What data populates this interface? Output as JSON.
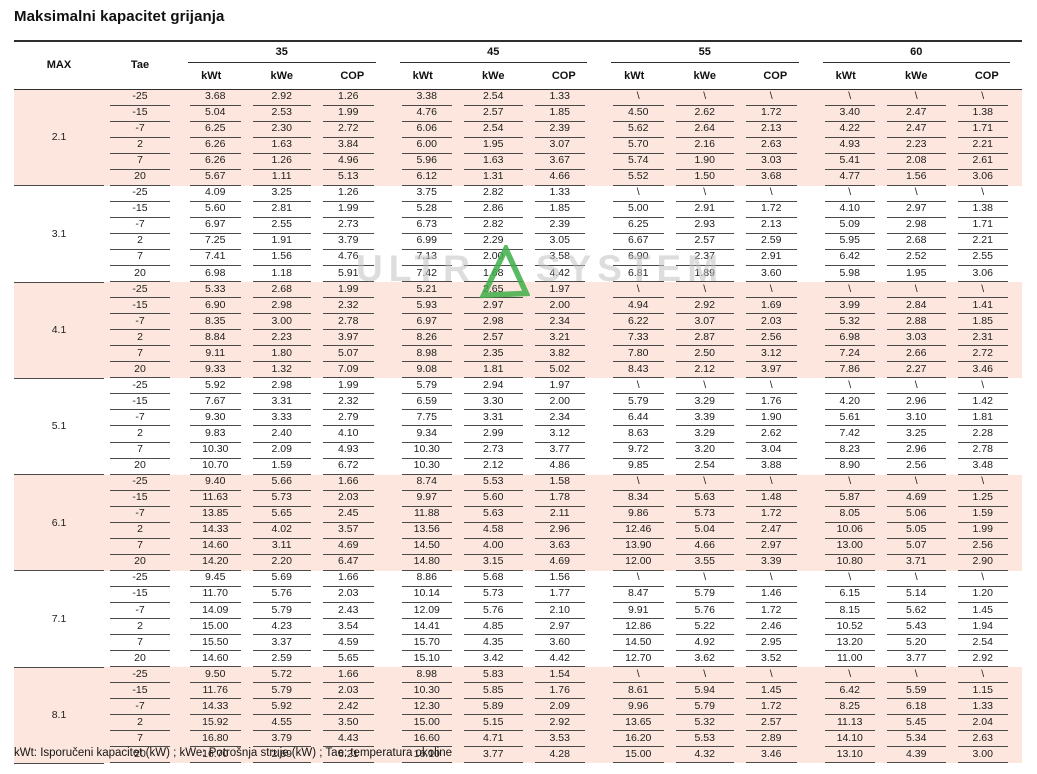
{
  "title": "Maksimalni kapacitet grijanja",
  "header": {
    "max_label": "MAX",
    "tae_label": "Tae",
    "groups": [
      "35",
      "45",
      "55",
      "60"
    ],
    "sub_labels": [
      "kWt",
      "kWe",
      "COP"
    ]
  },
  "footnote": "kWt: Isporučeni kapacitet (kW) ; kWe: Potrošnja struje (kW) ; Tae: temperatura okoline",
  "watermark": {
    "part1": "ULTR",
    "part2": "SYSTEM",
    "triangle_color": "#3fae49",
    "text_color": "#c3c3c3"
  },
  "colors": {
    "band_pink": "#fce6dd",
    "line_dark": "#2e2e2e",
    "line_cell": "#4a4a4a"
  },
  "chart_data": {
    "type": "table",
    "title": "Maksimalni kapacitet grijanja",
    "column_groups": [
      "35",
      "45",
      "55",
      "60"
    ],
    "columns_per_group": [
      "kWt",
      "kWe",
      "COP"
    ],
    "groups": [
      {
        "max": "2.1",
        "rows": [
          [
            "-25",
            "3.68",
            "2.92",
            "1.26",
            "3.38",
            "2.54",
            "1.33",
            "\\",
            "\\",
            "\\",
            "\\",
            "\\",
            "\\"
          ],
          [
            "-15",
            "5.04",
            "2.53",
            "1.99",
            "4.76",
            "2.57",
            "1.85",
            "4.50",
            "2.62",
            "1.72",
            "3.40",
            "2.47",
            "1.38"
          ],
          [
            "-7",
            "6.25",
            "2.30",
            "2.72",
            "6.06",
            "2.54",
            "2.39",
            "5.62",
            "2.64",
            "2.13",
            "4.22",
            "2.47",
            "1.71"
          ],
          [
            "2",
            "6.26",
            "1.63",
            "3.84",
            "6.00",
            "1.95",
            "3.07",
            "5.70",
            "2.16",
            "2.63",
            "4.93",
            "2.23",
            "2.21"
          ],
          [
            "7",
            "6.26",
            "1.26",
            "4.96",
            "5.96",
            "1.63",
            "3.67",
            "5.74",
            "1.90",
            "3.03",
            "5.41",
            "2.08",
            "2.61"
          ],
          [
            "20",
            "5.67",
            "1.11",
            "5.13",
            "6.12",
            "1.31",
            "4.66",
            "5.52",
            "1.50",
            "3.68",
            "4.77",
            "1.56",
            "3.06"
          ]
        ]
      },
      {
        "max": "3.1",
        "rows": [
          [
            "-25",
            "4.09",
            "3.25",
            "1.26",
            "3.75",
            "2.82",
            "1.33",
            "\\",
            "\\",
            "\\",
            "\\",
            "\\",
            "\\"
          ],
          [
            "-15",
            "5.60",
            "2.81",
            "1.99",
            "5.28",
            "2.86",
            "1.85",
            "5.00",
            "2.91",
            "1.72",
            "4.10",
            "2.97",
            "1.38"
          ],
          [
            "-7",
            "6.97",
            "2.55",
            "2.73",
            "6.73",
            "2.82",
            "2.39",
            "6.25",
            "2.93",
            "2.13",
            "5.09",
            "2.98",
            "1.71"
          ],
          [
            "2",
            "7.25",
            "1.91",
            "3.79",
            "6.99",
            "2.29",
            "3.05",
            "6.67",
            "2.57",
            "2.59",
            "5.95",
            "2.68",
            "2.21"
          ],
          [
            "7",
            "7.41",
            "1.56",
            "4.76",
            "7.13",
            "2.00",
            "3.58",
            "6.90",
            "2.37",
            "2.91",
            "6.42",
            "2.52",
            "2.55"
          ],
          [
            "20",
            "6.98",
            "1.18",
            "5.91",
            "7.42",
            "1.68",
            "4.42",
            "6.81",
            "1.89",
            "3.60",
            "5.98",
            "1.95",
            "3.06"
          ]
        ]
      },
      {
        "max": "4.1",
        "rows": [
          [
            "-25",
            "5.33",
            "2.68",
            "1.99",
            "5.21",
            "2.65",
            "1.97",
            "\\",
            "\\",
            "\\",
            "\\",
            "\\",
            "\\"
          ],
          [
            "-15",
            "6.90",
            "2.98",
            "2.32",
            "5.93",
            "2.97",
            "2.00",
            "4.94",
            "2.92",
            "1.69",
            "3.99",
            "2.84",
            "1.41"
          ],
          [
            "-7",
            "8.35",
            "3.00",
            "2.78",
            "6.97",
            "2.98",
            "2.34",
            "6.22",
            "3.07",
            "2.03",
            "5.32",
            "2.88",
            "1.85"
          ],
          [
            "2",
            "8.84",
            "2.23",
            "3.97",
            "8.26",
            "2.57",
            "3.21",
            "7.33",
            "2.87",
            "2.56",
            "6.98",
            "3.03",
            "2.31"
          ],
          [
            "7",
            "9.11",
            "1.80",
            "5.07",
            "8.98",
            "2.35",
            "3.82",
            "7.80",
            "2.50",
            "3.12",
            "7.24",
            "2.66",
            "2.72"
          ],
          [
            "20",
            "9.33",
            "1.32",
            "7.09",
            "9.08",
            "1.81",
            "5.02",
            "8.43",
            "2.12",
            "3.97",
            "7.86",
            "2.27",
            "3.46"
          ]
        ]
      },
      {
        "max": "5.1",
        "rows": [
          [
            "-25",
            "5.92",
            "2.98",
            "1.99",
            "5.79",
            "2.94",
            "1.97",
            "\\",
            "\\",
            "\\",
            "\\",
            "\\",
            "\\"
          ],
          [
            "-15",
            "7.67",
            "3.31",
            "2.32",
            "6.59",
            "3.30",
            "2.00",
            "5.79",
            "3.29",
            "1.76",
            "4.20",
            "2.96",
            "1.42"
          ],
          [
            "-7",
            "9.30",
            "3.33",
            "2.79",
            "7.75",
            "3.31",
            "2.34",
            "6.44",
            "3.39",
            "1.90",
            "5.61",
            "3.10",
            "1.81"
          ],
          [
            "2",
            "9.83",
            "2.40",
            "4.10",
            "9.34",
            "2.99",
            "3.12",
            "8.63",
            "3.29",
            "2.62",
            "7.42",
            "3.25",
            "2.28"
          ],
          [
            "7",
            "10.30",
            "2.09",
            "4.93",
            "10.30",
            "2.73",
            "3.77",
            "9.72",
            "3.20",
            "3.04",
            "8.23",
            "2.96",
            "2.78"
          ],
          [
            "20",
            "10.70",
            "1.59",
            "6.72",
            "10.30",
            "2.12",
            "4.86",
            "9.85",
            "2.54",
            "3.88",
            "8.90",
            "2.56",
            "3.48"
          ]
        ]
      },
      {
        "max": "6.1",
        "rows": [
          [
            "-25",
            "9.40",
            "5.66",
            "1.66",
            "8.74",
            "5.53",
            "1.58",
            "\\",
            "\\",
            "\\",
            "\\",
            "\\",
            "\\"
          ],
          [
            "-15",
            "11.63",
            "5.73",
            "2.03",
            "9.97",
            "5.60",
            "1.78",
            "8.34",
            "5.63",
            "1.48",
            "5.87",
            "4.69",
            "1.25"
          ],
          [
            "-7",
            "13.85",
            "5.65",
            "2.45",
            "11.88",
            "5.63",
            "2.11",
            "9.86",
            "5.73",
            "1.72",
            "8.05",
            "5.06",
            "1.59"
          ],
          [
            "2",
            "14.33",
            "4.02",
            "3.57",
            "13.56",
            "4.58",
            "2.96",
            "12.46",
            "5.04",
            "2.47",
            "10.06",
            "5.05",
            "1.99"
          ],
          [
            "7",
            "14.60",
            "3.11",
            "4.69",
            "14.50",
            "4.00",
            "3.63",
            "13.90",
            "4.66",
            "2.97",
            "13.00",
            "5.07",
            "2.56"
          ],
          [
            "20",
            "14.20",
            "2.20",
            "6.47",
            "14.80",
            "3.15",
            "4.69",
            "12.00",
            "3.55",
            "3.39",
            "10.80",
            "3.71",
            "2.90"
          ]
        ]
      },
      {
        "max": "7.1",
        "rows": [
          [
            "-25",
            "9.45",
            "5.69",
            "1.66",
            "8.86",
            "5.68",
            "1.56",
            "\\",
            "\\",
            "\\",
            "\\",
            "\\",
            "\\"
          ],
          [
            "-15",
            "11.70",
            "5.76",
            "2.03",
            "10.14",
            "5.73",
            "1.77",
            "8.47",
            "5.79",
            "1.46",
            "6.15",
            "5.14",
            "1.20"
          ],
          [
            "-7",
            "14.09",
            "5.79",
            "2.43",
            "12.09",
            "5.76",
            "2.10",
            "9.91",
            "5.76",
            "1.72",
            "8.15",
            "5.62",
            "1.45"
          ],
          [
            "2",
            "15.00",
            "4.23",
            "3.54",
            "14.41",
            "4.85",
            "2.97",
            "12.86",
            "5.22",
            "2.46",
            "10.52",
            "5.43",
            "1.94"
          ],
          [
            "7",
            "15.50",
            "3.37",
            "4.59",
            "15.70",
            "4.35",
            "3.60",
            "14.50",
            "4.92",
            "2.95",
            "13.20",
            "5.20",
            "2.54"
          ],
          [
            "20",
            "14.60",
            "2.59",
            "5.65",
            "15.10",
            "3.42",
            "4.42",
            "12.70",
            "3.62",
            "3.52",
            "11.00",
            "3.77",
            "2.92"
          ]
        ]
      },
      {
        "max": "8.1",
        "rows": [
          [
            "-25",
            "9.50",
            "5.72",
            "1.66",
            "8.98",
            "5.83",
            "1.54",
            "\\",
            "\\",
            "\\",
            "\\",
            "\\",
            "\\"
          ],
          [
            "-15",
            "11.76",
            "5.79",
            "2.03",
            "10.30",
            "5.85",
            "1.76",
            "8.61",
            "5.94",
            "1.45",
            "6.42",
            "5.59",
            "1.15"
          ],
          [
            "-7",
            "14.33",
            "5.92",
            "2.42",
            "12.30",
            "5.89",
            "2.09",
            "9.96",
            "5.79",
            "1.72",
            "8.25",
            "6.18",
            "1.33"
          ],
          [
            "2",
            "15.92",
            "4.55",
            "3.50",
            "15.00",
            "5.15",
            "2.92",
            "13.65",
            "5.32",
            "2.57",
            "11.13",
            "5.45",
            "2.04"
          ],
          [
            "7",
            "16.80",
            "3.79",
            "4.43",
            "16.60",
            "4.71",
            "3.53",
            "16.20",
            "5.53",
            "2.89",
            "14.10",
            "5.34",
            "2.63"
          ],
          [
            "20",
            "16.70",
            "2.69",
            "6.21",
            "16.10",
            "3.77",
            "4.28",
            "15.00",
            "4.32",
            "3.46",
            "13.10",
            "4.39",
            "3.00"
          ]
        ]
      }
    ]
  }
}
